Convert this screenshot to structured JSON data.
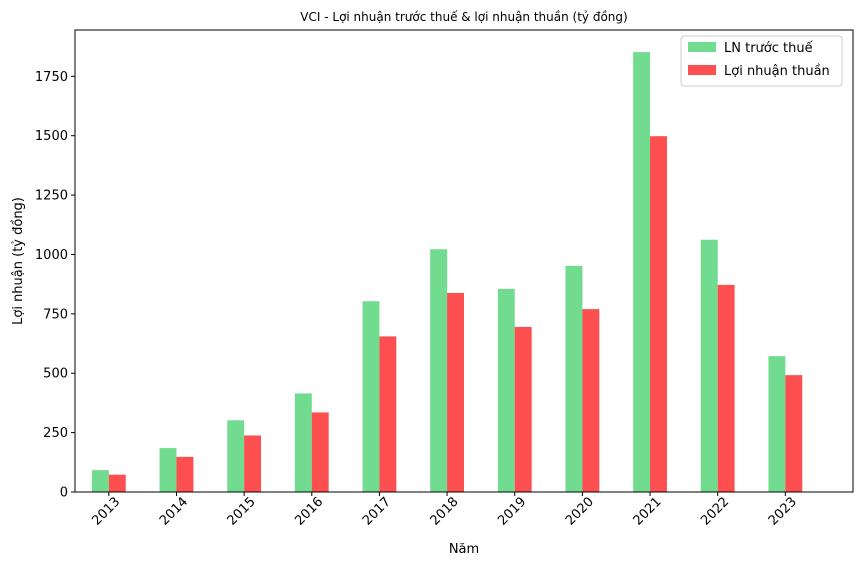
{
  "chart_data": {
    "type": "bar",
    "title": "VCI - Lợi nhuận trước thuế & lợi nhuận thuần (tỷ đồng)",
    "xlabel": "Năm",
    "ylabel": "Lợi nhuận (tỷ đồng)",
    "categories": [
      "2013",
      "2014",
      "2015",
      "2016",
      "2017",
      "2018",
      "2019",
      "2020",
      "2021",
      "2022",
      "2023"
    ],
    "series": [
      {
        "name": "LN trước thuế",
        "color": "#71db8f",
        "values": [
          92,
          185,
          302,
          415,
          803,
          1022,
          855,
          952,
          1852,
          1062,
          572
        ]
      },
      {
        "name": "Lợi nhuận thuần",
        "color": "#fe4f50",
        "values": [
          73,
          148,
          238,
          335,
          655,
          838,
          695,
          770,
          1498,
          872,
          492
        ]
      }
    ],
    "ylim": [
      0,
      1945
    ],
    "yticks": [
      0,
      250,
      500,
      750,
      1000,
      1250,
      1500,
      1750
    ],
    "legend": "top-right",
    "grid": false
  }
}
